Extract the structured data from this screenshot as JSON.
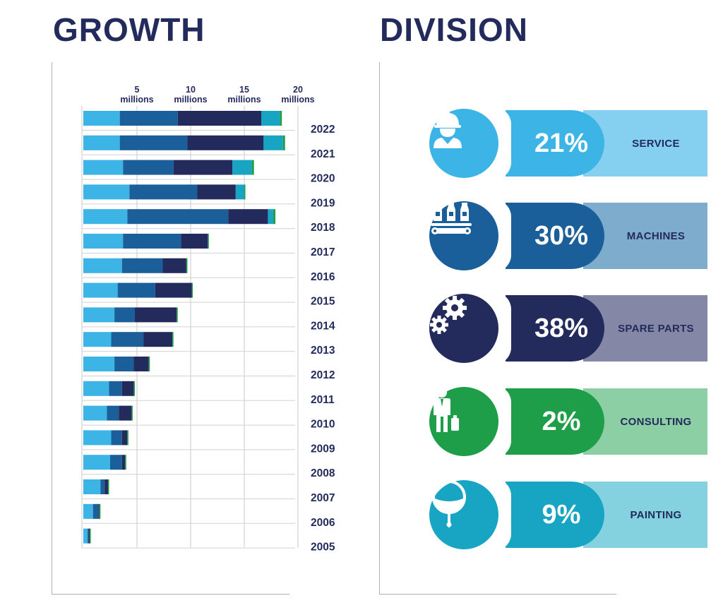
{
  "growth": {
    "title": "GROWTH"
  },
  "division": {
    "title": "DIVISION",
    "items": [
      {
        "percent": "21%",
        "label": "SERVICE",
        "icon": "worker-helmet-icon",
        "dark": "#3cb4e6",
        "light": "#85d0f0"
      },
      {
        "percent": "30%",
        "label": "MACHINES",
        "icon": "conveyor-bottles-icon",
        "dark": "#1a5e9a",
        "light": "#7eaccc"
      },
      {
        "percent": "38%",
        "label": "SPARE PARTS",
        "icon": "gears-icon",
        "dark": "#232b5c",
        "light": "#8487a5"
      },
      {
        "percent": "2%",
        "label": "CONSULTING",
        "icon": "businessman-icon",
        "dark": "#1f9e4a",
        "light": "#8dcfa4"
      },
      {
        "percent": "9%",
        "label": "PAINTING",
        "icon": "paint-ladle-icon",
        "dark": "#17a5c3",
        "light": "#84d2e0"
      }
    ]
  },
  "chart_data": {
    "type": "bar",
    "orientation": "horizontal",
    "stacked": true,
    "title": "GROWTH",
    "xlabel": "",
    "ylabel": "",
    "xlim": [
      0,
      20
    ],
    "x_ticks": [
      {
        "value": 5,
        "line1": "5",
        "line2": "millions"
      },
      {
        "value": 10,
        "line1": "10",
        "line2": "millions"
      },
      {
        "value": 15,
        "line1": "15",
        "line2": "millions"
      },
      {
        "value": 20,
        "line1": "20",
        "line2": "millions"
      }
    ],
    "categories": [
      "2022",
      "2021",
      "2020",
      "2019",
      "2018",
      "2017",
      "2016",
      "2015",
      "2014",
      "2013",
      "2012",
      "2011",
      "2010",
      "2009",
      "2008",
      "2007",
      "2006",
      "2005"
    ],
    "series": [
      {
        "name": "Service",
        "color": "#3cb4e6",
        "values": [
          3.4,
          3.4,
          3.7,
          4.3,
          4.1,
          3.7,
          3.6,
          3.2,
          2.9,
          2.6,
          2.9,
          2.4,
          2.2,
          2.6,
          2.5,
          1.6,
          0.9,
          0.4
        ]
      },
      {
        "name": "Machines",
        "color": "#1a5e9a",
        "values": [
          5.4,
          6.3,
          4.7,
          6.3,
          9.4,
          5.4,
          3.8,
          3.5,
          1.9,
          3.0,
          1.8,
          1.2,
          1.1,
          1.0,
          1.1,
          0.4,
          0.5,
          0.1
        ]
      },
      {
        "name": "Spare parts",
        "color": "#232b5c",
        "values": [
          7.8,
          7.1,
          5.5,
          3.6,
          3.7,
          2.5,
          2.2,
          3.4,
          3.9,
          2.7,
          1.4,
          1.1,
          1.2,
          0.5,
          0.3,
          0.3,
          0.1,
          0.1
        ]
      },
      {
        "name": "Consulting",
        "color": "#1f9e4a",
        "values": [
          0.2,
          0.2,
          0.2,
          0.1,
          0.2,
          0.1,
          0.1,
          0.1,
          0.1,
          0.1,
          0.1,
          0.1,
          0.1,
          0.1,
          0.1,
          0.05,
          0.05,
          0.05
        ]
      },
      {
        "name": "Painting",
        "color": "#17a5c3",
        "values": [
          1.7,
          1.8,
          1.8,
          0.8,
          0.5,
          0,
          0,
          0,
          0,
          0,
          0,
          0,
          0,
          0,
          0,
          0,
          0,
          0
        ]
      }
    ]
  }
}
